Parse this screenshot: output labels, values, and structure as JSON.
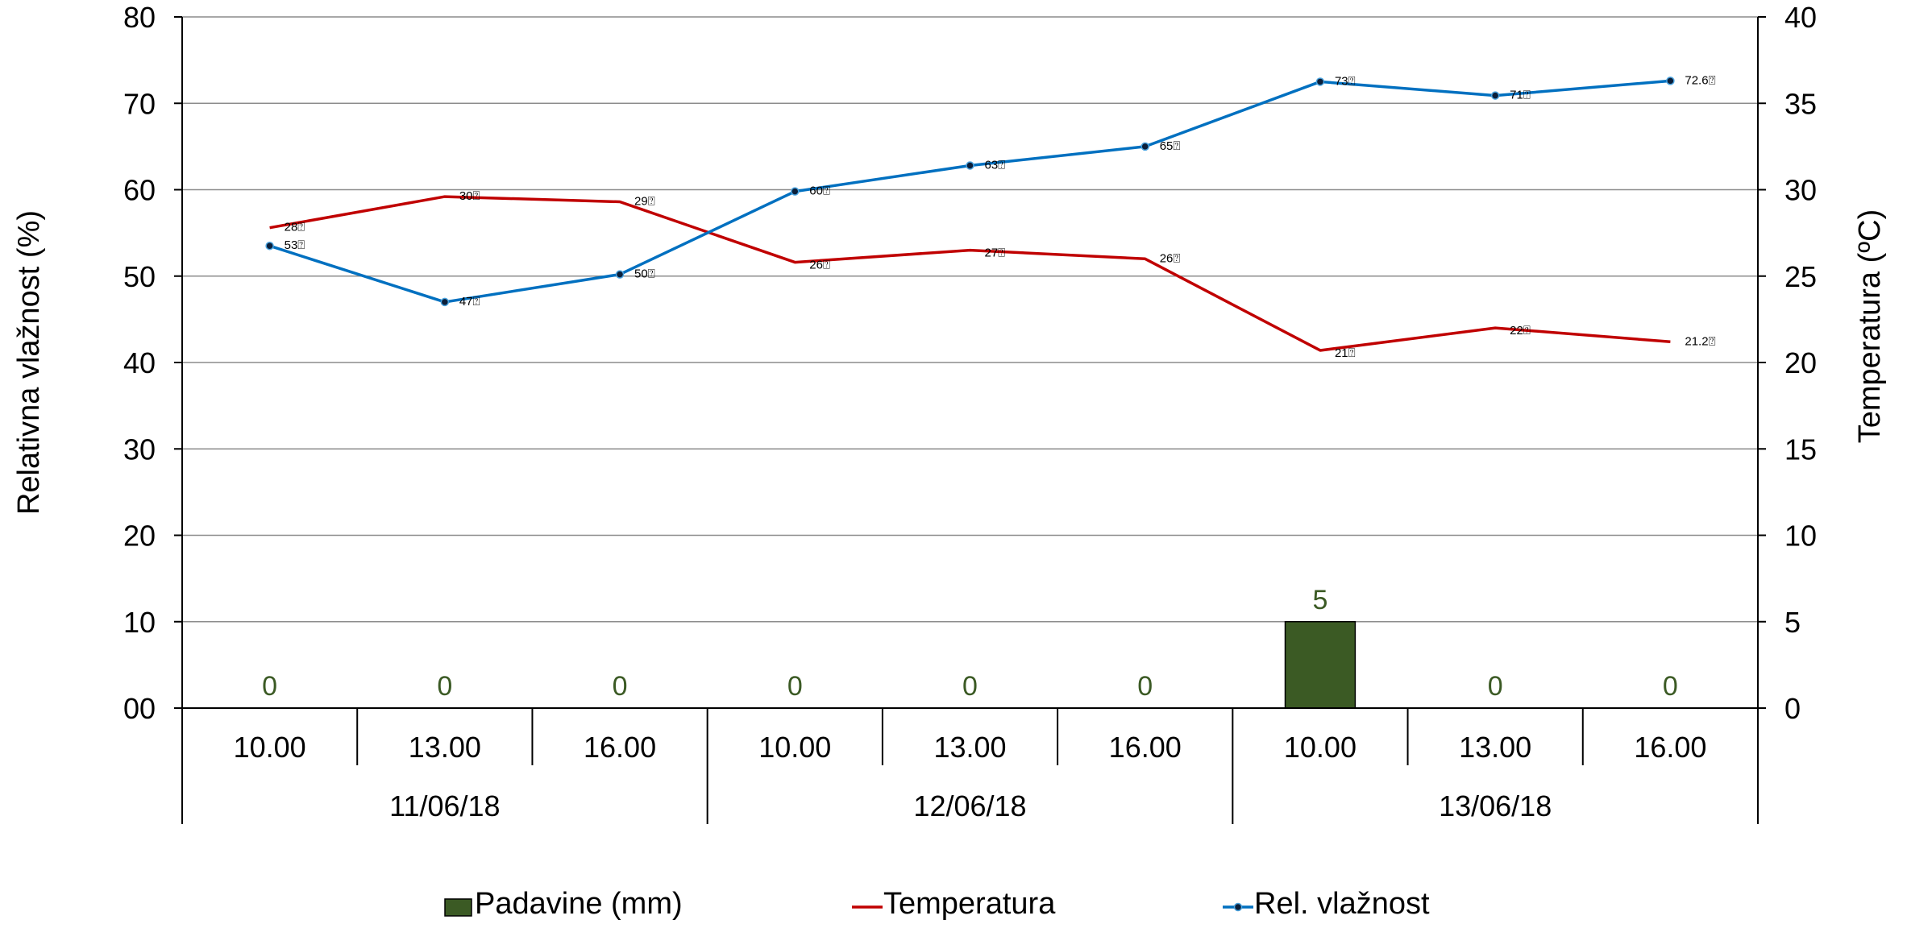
{
  "chart_data": {
    "type": "combo",
    "categories": [
      {
        "time": "10.00",
        "date": "11/06/18"
      },
      {
        "time": "13.00",
        "date": "11/06/18"
      },
      {
        "time": "16.00",
        "date": "11/06/18"
      },
      {
        "time": "10.00",
        "date": "12/06/18"
      },
      {
        "time": "13.00",
        "date": "12/06/18"
      },
      {
        "time": "16.00",
        "date": "12/06/18"
      },
      {
        "time": "10.00",
        "date": "13/06/18"
      },
      {
        "time": "13.00",
        "date": "13/06/18"
      },
      {
        "time": "16.00",
        "date": "13/06/18"
      }
    ],
    "dates": [
      "11/06/18",
      "12/06/18",
      "13/06/18"
    ],
    "y_left": {
      "label": "Relativna vlažnost (%)",
      "min": 0,
      "max": 80,
      "ticks": [
        "00",
        "10",
        "20",
        "30",
        "40",
        "50",
        "60",
        "70",
        "80"
      ]
    },
    "y_right": {
      "label": "Temperatura (ºC)",
      "min": 0,
      "max": 40,
      "ticks": [
        "0",
        "5",
        "10",
        "15",
        "20",
        "25",
        "30",
        "35",
        "40"
      ]
    },
    "grid": true,
    "legend_position": "bottom",
    "series": [
      {
        "name": "Padavine (mm)",
        "kind": "bar",
        "axis": "right",
        "color": "#3b5a24",
        "values": [
          0,
          0,
          0,
          0,
          0,
          0,
          5,
          0,
          0
        ],
        "labels": [
          "0",
          "0",
          "0",
          "0",
          "0",
          "0",
          "5",
          "0",
          "0"
        ]
      },
      {
        "name": "Temperatura",
        "kind": "line",
        "axis": "right",
        "color": "#c00000",
        "values": [
          27.8,
          29.6,
          29.3,
          25.8,
          26.5,
          26.0,
          20.7,
          22.0,
          21.2
        ],
        "labels": [
          "28⍰",
          "30⍰",
          "29⍰",
          "26⍰",
          "27⍰",
          "26⍰",
          "21⍰",
          "22⍰",
          "21.2⍰"
        ]
      },
      {
        "name": "Rel. vlažnost",
        "kind": "line",
        "axis": "left",
        "color": "#0070c0",
        "values": [
          53.5,
          47.0,
          50.2,
          59.8,
          62.8,
          65.0,
          72.5,
          70.9,
          72.6
        ],
        "labels": [
          "53⍰",
          "47⍰",
          "50⍰",
          "60⍰",
          "63⍰",
          "65⍰",
          "73⍰",
          "71⍰",
          "72.6⍰"
        ]
      }
    ]
  }
}
